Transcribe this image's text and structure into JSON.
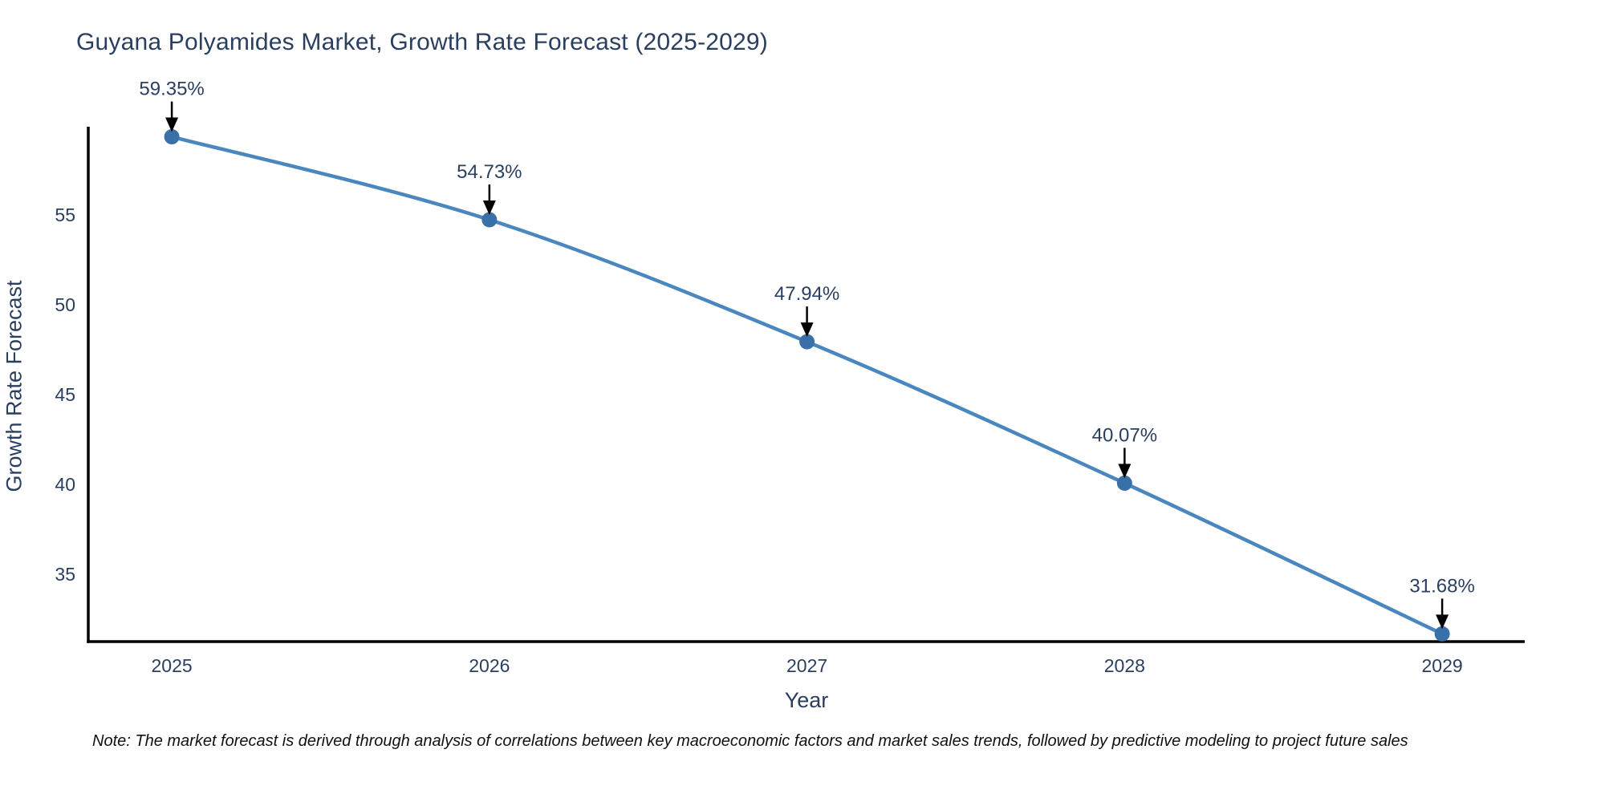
{
  "chart": {
    "title": "Guyana Polyamides Market, Growth Rate Forecast (2025-2029)",
    "xlabel": "Year",
    "ylabel": "Growth Rate Forecast"
  },
  "note": {
    "text": "Note: The market forecast is derived through analysis of correlations between key macroeconomic factors and market sales trends, followed by predictive modeling to project future sales"
  },
  "chart_data": {
    "type": "line",
    "title": "Guyana Polyamides Market, Growth Rate Forecast (2025-2029)",
    "xlabel": "Year",
    "ylabel": "Growth Rate Forecast",
    "x": [
      2025,
      2026,
      2027,
      2028,
      2029
    ],
    "values": [
      59.35,
      54.73,
      47.94,
      40.07,
      31.68
    ],
    "point_labels": [
      "59.35%",
      "54.73%",
      "47.94%",
      "40.07%",
      "31.68%"
    ],
    "xticks": [
      "2025",
      "2026",
      "2027",
      "2028",
      "2029"
    ],
    "yticks": [
      35,
      40,
      45,
      50,
      55
    ],
    "xlim": [
      2024.737,
      2029.26
    ],
    "ylim": [
      31.25,
      59.91
    ],
    "grid": false,
    "legend": "none",
    "line_shape": "spline",
    "annotation_style": "label-with-down-arrow",
    "colors": {
      "line": "#4a87bf",
      "marker": "#3a70a8",
      "text": "#2a3f5f",
      "axis_line": "#000000",
      "annotation_arrow": "#000000",
      "note_text": "#111111",
      "background": "#ffffff"
    }
  }
}
